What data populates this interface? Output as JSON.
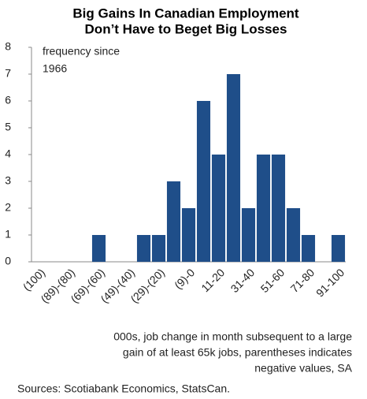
{
  "chart_data": {
    "type": "bar",
    "title": [
      "Big Gains In Canadian Employment",
      "Don’t Have to Beget Big Losses"
    ],
    "y_label": [
      "frequency since",
      "1966"
    ],
    "x_label": [
      "000s, job change in month subsequent to a large",
      "gain of at least 65k jobs, parentheses indicates",
      "negative values, SA"
    ],
    "source": "Sources: Scotiabank Economics, StatsCan.",
    "categories": [
      "(100)",
      null,
      "(89)-(80)",
      null,
      "(69)-(60)",
      null,
      "(49)-(40)",
      null,
      "(29)-(20)",
      null,
      "(9)-0",
      null,
      "11-20",
      null,
      "31-40",
      null,
      "51-60",
      null,
      "71-80",
      null,
      "91-100"
    ],
    "values": [
      0,
      0,
      0,
      0,
      1,
      0,
      0,
      1,
      1,
      3,
      2,
      6,
      4,
      7,
      2,
      4,
      4,
      2,
      1,
      0,
      1
    ],
    "color": "#1f4e89",
    "ylim": [
      0,
      8
    ],
    "yticks": [
      0,
      1,
      2,
      3,
      4,
      5,
      6,
      7,
      8
    ],
    "grid": false
  }
}
